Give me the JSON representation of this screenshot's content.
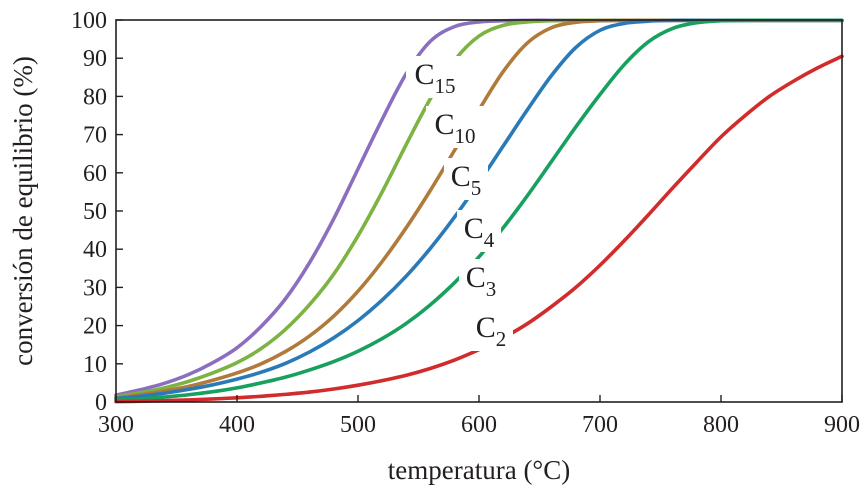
{
  "chart_data": {
    "type": "line",
    "title": "",
    "xlabel": "temperatura (°C)",
    "ylabel": "conversión de equilibrio (%)",
    "xlim": [
      300,
      900
    ],
    "ylim": [
      0,
      100
    ],
    "x_ticks": [
      300,
      400,
      500,
      600,
      700,
      800,
      900
    ],
    "y_ticks": [
      0,
      10,
      20,
      30,
      40,
      50,
      60,
      70,
      80,
      90,
      100
    ],
    "x_tick_labels": [
      "300",
      "400",
      "500",
      "600",
      "700",
      "800",
      "900"
    ],
    "y_tick_labels": [
      "0",
      "10",
      "20",
      "30",
      "40",
      "50",
      "60",
      "70",
      "80",
      "90",
      "100"
    ],
    "grid": false,
    "legend": "inline labels",
    "x": [
      300,
      320,
      340,
      360,
      380,
      400,
      420,
      440,
      460,
      480,
      500,
      520,
      540,
      560,
      580,
      600,
      620,
      640,
      660,
      680,
      700,
      720,
      740,
      760,
      780,
      800,
      820,
      840,
      860,
      880,
      900
    ],
    "series": [
      {
        "name": "C15",
        "label_main": "C",
        "label_sub": "15",
        "color": "#8b6fbf",
        "values": [
          1.8,
          3.2,
          4.9,
          7.2,
          10.3,
          14.2,
          19.8,
          27,
          36.5,
          48,
          61,
          74,
          86,
          94.5,
          98.3,
          99.5,
          99.8,
          99.9,
          99.9,
          99.9,
          99.9,
          99.9,
          99.9,
          99.9,
          99.9,
          99.9,
          99.9,
          99.9,
          99.9,
          99.9,
          99.9
        ]
      },
      {
        "name": "C10",
        "label_main": "C",
        "label_sub": "10",
        "color": "#7cb342",
        "values": [
          1.4,
          2.4,
          3.7,
          5.4,
          7.6,
          10.3,
          14,
          19,
          25.5,
          33.5,
          43.5,
          55,
          67.5,
          79.5,
          89.5,
          95.8,
          98.6,
          99.5,
          99.8,
          99.9,
          99.9,
          99.9,
          99.9,
          99.9,
          99.9,
          99.9,
          99.9,
          99.9,
          99.9,
          99.9,
          99.9
        ]
      },
      {
        "name": "C5",
        "label_main": "C",
        "label_sub": "5",
        "color": "#b07a3a",
        "values": [
          1.1,
          1.9,
          2.9,
          4.1,
          5.7,
          7.6,
          10,
          13.2,
          17.3,
          22.5,
          29,
          36.8,
          45.7,
          55.5,
          66,
          76.5,
          86.5,
          94,
          98,
          99.4,
          99.8,
          99.9,
          99.9,
          99.9,
          99.9,
          99.9,
          99.9,
          99.9,
          99.9,
          99.9,
          99.9
        ]
      },
      {
        "name": "C4",
        "label_main": "C",
        "label_sub": "4",
        "color": "#2a7ab8",
        "values": [
          0.9,
          1.5,
          2.3,
          3.3,
          4.5,
          6,
          7.8,
          10.1,
          13.1,
          16.8,
          21.3,
          26.7,
          33,
          40.3,
          48.5,
          57.5,
          67,
          76.5,
          85.5,
          92.8,
          97.3,
          99.1,
          99.7,
          99.9,
          99.9,
          99.9,
          99.9,
          99.9,
          99.9,
          99.9,
          99.9
        ]
      },
      {
        "name": "C3",
        "label_main": "C",
        "label_sub": "3",
        "color": "#17a05e",
        "values": [
          0.5,
          0.8,
          1.3,
          1.9,
          2.7,
          3.7,
          5,
          6.5,
          8.4,
          10.6,
          13.3,
          16.6,
          20.6,
          25.5,
          31.3,
          38,
          45.6,
          54,
          63,
          72,
          80.5,
          88.3,
          94.3,
          97.8,
          99.3,
          99.8,
          99.9,
          99.9,
          99.9,
          99.9,
          99.9
        ]
      },
      {
        "name": "C2",
        "label_main": "C",
        "label_sub": "2",
        "color": "#d22b2b",
        "values": [
          0.1,
          0.2,
          0.35,
          0.55,
          0.8,
          1.1,
          1.5,
          2,
          2.6,
          3.4,
          4.4,
          5.6,
          7,
          8.8,
          11,
          13.7,
          16.8,
          20.5,
          25,
          30,
          35.8,
          42.2,
          49,
          56,
          62.8,
          69.4,
          75,
          80,
          84,
          87.5,
          90.5
        ]
      }
    ]
  }
}
